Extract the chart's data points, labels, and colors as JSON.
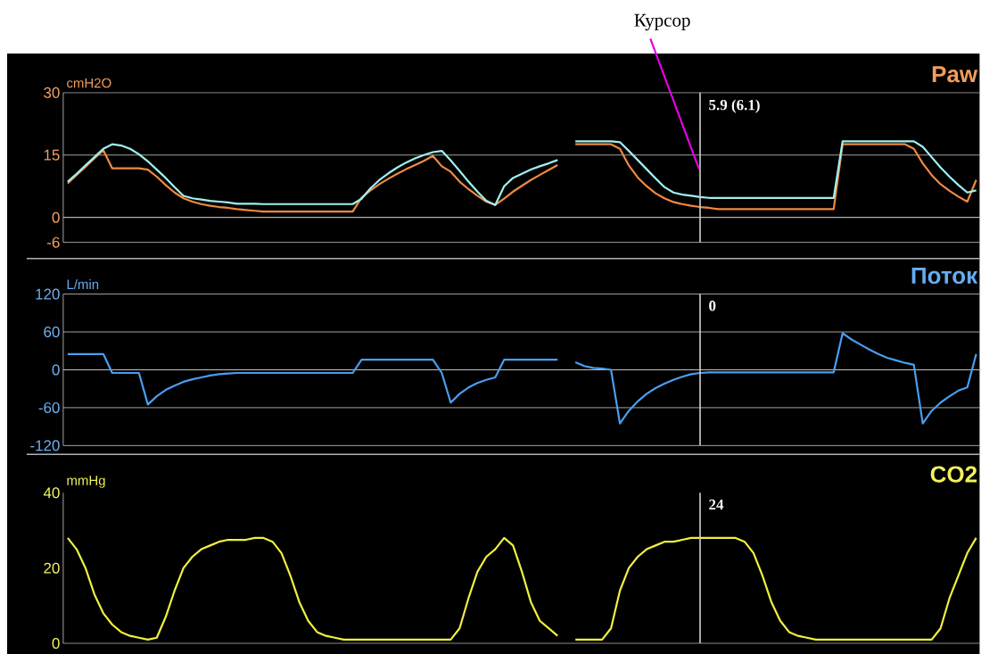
{
  "chart_data": [
    {
      "type": "line",
      "title": "Paw",
      "ylabel": "cmH2O",
      "ylim": [
        -6,
        30
      ],
      "yticks": [
        -6,
        0,
        15,
        30
      ],
      "grid": "y",
      "tick_labels": "y",
      "categories": [
        null,
        null,
        null,
        null,
        null,
        null,
        null,
        null,
        null,
        null,
        null,
        null,
        null,
        null,
        null,
        null,
        null,
        null,
        null,
        null,
        null,
        null,
        null,
        null,
        null,
        null,
        null,
        null,
        null,
        null,
        null,
        null,
        null,
        null,
        null,
        null,
        null,
        null,
        null,
        null,
        null,
        null,
        null,
        null,
        null,
        null,
        null,
        null,
        null,
        null,
        null,
        null,
        null,
        null,
        null,
        null,
        null,
        null,
        null,
        null,
        null,
        null,
        null,
        null,
        null,
        null,
        null,
        null,
        null,
        null,
        null,
        null,
        null,
        null,
        null,
        null,
        null,
        null,
        null,
        null,
        null,
        null,
        null,
        null,
        null,
        null,
        null,
        null,
        null,
        null,
        null,
        null,
        null,
        null,
        null,
        null,
        null,
        null,
        null,
        null,
        null,
        null,
        null
      ],
      "series": [
        {
          "color": "#f08a40",
          "values": [
            8.2,
            10.2,
            12.2,
            14.2,
            16.2,
            11.8,
            11.8,
            11.8,
            11.8,
            11.5,
            9.8,
            7.8,
            6.0,
            4.6,
            3.8,
            3.2,
            2.8,
            2.5,
            2.3,
            2.0,
            1.8,
            1.6,
            1.4,
            1.4,
            1.4,
            1.4,
            1.4,
            1.4,
            1.4,
            1.4,
            1.4,
            1.4,
            1.4,
            4.8,
            6.5,
            8.0,
            9.3,
            10.5,
            11.6,
            12.6,
            13.6,
            14.8,
            12.3,
            11.0,
            8.6,
            6.8,
            5.2,
            3.8,
            3.0,
            4.5,
            6.2,
            7.6,
            9.0,
            10.2,
            11.4,
            12.6,
            null,
            17.6,
            17.6,
            17.6,
            17.6,
            17.6,
            16.5,
            12.5,
            9.6,
            7.5,
            5.8,
            4.6,
            3.7,
            3.2,
            2.8,
            2.5,
            2.3,
            2.0,
            2.0,
            2.0,
            2.0,
            2.0,
            2.0,
            2.0,
            2.0,
            2.0,
            2.0,
            2.0,
            2.0,
            2.0,
            2.0,
            17.6,
            17.6,
            17.6,
            17.6,
            17.6,
            17.6,
            17.6,
            17.6,
            16.5,
            13.0,
            10.2,
            8.0,
            6.4,
            5.0,
            3.8,
            9.0
          ]
        },
        {
          "color": "#a0f0f0",
          "values": [
            8.6,
            10.5,
            12.5,
            14.5,
            16.5,
            17.6,
            17.3,
            16.5,
            15.2,
            13.5,
            11.5,
            9.5,
            7.3,
            5.2,
            4.6,
            4.3,
            4.0,
            3.8,
            3.6,
            3.3,
            3.3,
            3.3,
            3.2,
            3.2,
            3.2,
            3.2,
            3.2,
            3.2,
            3.2,
            3.2,
            3.2,
            3.2,
            3.2,
            4.5,
            7.0,
            9.0,
            10.6,
            12.0,
            13.2,
            14.2,
            15.0,
            15.7,
            16.0,
            13.7,
            11.2,
            8.6,
            6.2,
            4.0,
            3.0,
            7.5,
            9.5,
            10.5,
            11.5,
            12.3,
            13.0,
            13.8,
            null,
            18.3,
            18.3,
            18.3,
            18.3,
            18.3,
            18.1,
            16.0,
            13.8,
            11.6,
            9.4,
            7.3,
            6.0,
            5.5,
            5.2,
            4.9,
            4.7,
            4.7,
            4.7,
            4.7,
            4.7,
            4.7,
            4.7,
            4.7,
            4.7,
            4.7,
            4.7,
            4.7,
            4.7,
            4.7,
            4.7,
            18.3,
            18.3,
            18.3,
            18.3,
            18.3,
            18.3,
            18.3,
            18.3,
            18.3,
            17.0,
            14.5,
            12.0,
            9.8,
            7.8,
            6.0,
            6.5
          ]
        }
      ],
      "annotations": [
        "5.9 (6.1)",
        "Курсор"
      ]
    },
    {
      "type": "line",
      "title": "Поток",
      "ylabel": "L/min",
      "ylim": [
        -120,
        120
      ],
      "yticks": [
        -120,
        -60,
        0,
        60,
        120
      ],
      "grid": "y",
      "tick_labels": "y",
      "categories": [
        null,
        null,
        null,
        null,
        null,
        null,
        null,
        null,
        null,
        null,
        null,
        null,
        null,
        null,
        null,
        null,
        null,
        null,
        null,
        null,
        null,
        null,
        null,
        null,
        null,
        null,
        null,
        null,
        null,
        null,
        null,
        null,
        null,
        null,
        null,
        null,
        null,
        null,
        null,
        null,
        null,
        null,
        null,
        null,
        null,
        null,
        null,
        null,
        null,
        null,
        null,
        null,
        null,
        null,
        null,
        null,
        null,
        null,
        null,
        null,
        null,
        null,
        null,
        null,
        null,
        null,
        null,
        null,
        null,
        null,
        null,
        null,
        null,
        null,
        null,
        null,
        null,
        null,
        null,
        null,
        null,
        null,
        null,
        null,
        null,
        null,
        null,
        null,
        null,
        null,
        null,
        null,
        null,
        null,
        null,
        null,
        null,
        null,
        null,
        null,
        null,
        null,
        null
      ],
      "series": [
        {
          "color": "#4a9ef0",
          "values": [
            25,
            25,
            25,
            25,
            25,
            -5,
            -5,
            -5,
            -5,
            -55,
            -42,
            -32,
            -25,
            -19,
            -15,
            -12,
            -9,
            -7,
            -6,
            -5,
            -5,
            -5,
            -5,
            -5,
            -5,
            -5,
            -5,
            -5,
            -5,
            -5,
            -5,
            -5,
            -5,
            16,
            16,
            16,
            16,
            16,
            16,
            16,
            16,
            16,
            -5,
            -52,
            -38,
            -28,
            -21,
            -16,
            -12,
            16,
            16,
            16,
            16,
            16,
            16,
            16,
            null,
            12,
            6,
            3,
            2,
            0,
            -85,
            -65,
            -50,
            -38,
            -29,
            -22,
            -16,
            -11,
            -7,
            -5,
            -4,
            -4,
            -4,
            -4,
            -4,
            -4,
            -4,
            -4,
            -4,
            -4,
            -4,
            -4,
            -4,
            -4,
            -4,
            58,
            48,
            40,
            32,
            25,
            19,
            15,
            11,
            8,
            -85,
            -65,
            -52,
            -42,
            -33,
            -28,
            25
          ]
        }
      ],
      "annotations": [
        "0"
      ]
    },
    {
      "type": "line",
      "title": "CO2",
      "ylabel": "mmHg",
      "ylim": [
        0,
        40
      ],
      "yticks": [
        0,
        20,
        40
      ],
      "tick_labels": "y",
      "categories": [
        null,
        null,
        null,
        null,
        null,
        null,
        null,
        null,
        null,
        null,
        null,
        null,
        null,
        null,
        null,
        null,
        null,
        null,
        null,
        null,
        null,
        null,
        null,
        null,
        null,
        null,
        null,
        null,
        null,
        null,
        null,
        null,
        null,
        null,
        null,
        null,
        null,
        null,
        null,
        null,
        null,
        null,
        null,
        null,
        null,
        null,
        null,
        null,
        null,
        null,
        null,
        null,
        null,
        null,
        null,
        null,
        null,
        null,
        null,
        null,
        null,
        null,
        null,
        null,
        null,
        null,
        null,
        null,
        null,
        null,
        null,
        null,
        null,
        null,
        null,
        null,
        null,
        null,
        null,
        null,
        null,
        null,
        null,
        null,
        null,
        null,
        null,
        null,
        null,
        null,
        null,
        null,
        null,
        null,
        null,
        null,
        null,
        null,
        null,
        null,
        null,
        null,
        null
      ],
      "series": [
        {
          "color": "#f0f040",
          "values": [
            28,
            25,
            20,
            13,
            8,
            5,
            3,
            2,
            1.5,
            1,
            1.5,
            7,
            14,
            20,
            23,
            25,
            26,
            27,
            27.5,
            27.5,
            27.5,
            28,
            28,
            27,
            24,
            18,
            11,
            6,
            3,
            2,
            1.5,
            1,
            1,
            1,
            1,
            1,
            1,
            1,
            1,
            1,
            1,
            1,
            1,
            1,
            4,
            12,
            19,
            23,
            25,
            28,
            26,
            19,
            11,
            6,
            4,
            2,
            null,
            1,
            1,
            1,
            1,
            4,
            14,
            20,
            23,
            25,
            26,
            27,
            27,
            27.5,
            28,
            28,
            28,
            28,
            28,
            28,
            27,
            24,
            18,
            11,
            6,
            3,
            2,
            1.5,
            1,
            1,
            1,
            1,
            1,
            1,
            1,
            1,
            1,
            1,
            1,
            1,
            1,
            1,
            4,
            12,
            18,
            24,
            28
          ]
        }
      ],
      "annotations": [
        "24"
      ]
    }
  ]
}
